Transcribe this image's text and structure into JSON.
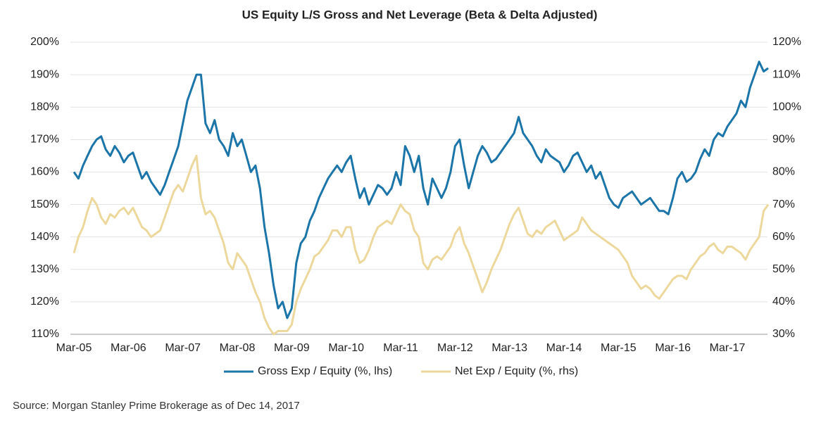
{
  "chart_data": {
    "type": "line",
    "title": "US Equity L/S Gross and Net Leverage (Beta & Delta Adjusted)",
    "source": "Source: Morgan Stanley Prime Brokerage as of Dec 14, 2017",
    "categories": [
      "Mar-05",
      null,
      null,
      null,
      null,
      null,
      null,
      null,
      null,
      null,
      null,
      null,
      "Mar-06",
      null,
      null,
      null,
      null,
      null,
      null,
      null,
      null,
      null,
      null,
      null,
      "Mar-07",
      null,
      null,
      null,
      null,
      null,
      null,
      null,
      null,
      null,
      null,
      null,
      "Mar-08",
      null,
      null,
      null,
      null,
      null,
      null,
      null,
      null,
      null,
      null,
      null,
      "Mar-09",
      null,
      null,
      null,
      null,
      null,
      null,
      null,
      null,
      null,
      null,
      null,
      "Mar-10",
      null,
      null,
      null,
      null,
      null,
      null,
      null,
      null,
      null,
      null,
      null,
      "Mar-11",
      null,
      null,
      null,
      null,
      null,
      null,
      null,
      null,
      null,
      null,
      null,
      "Mar-12",
      null,
      null,
      null,
      null,
      null,
      null,
      null,
      null,
      null,
      null,
      null,
      "Mar-13",
      null,
      null,
      null,
      null,
      null,
      null,
      null,
      null,
      null,
      null,
      null,
      "Mar-14",
      null,
      null,
      null,
      null,
      null,
      null,
      null,
      null,
      null,
      null,
      null,
      "Mar-15",
      null,
      null,
      null,
      null,
      null,
      null,
      null,
      null,
      null,
      null,
      null,
      "Mar-16",
      null,
      null,
      null,
      null,
      null,
      null,
      null,
      null,
      null,
      null,
      null,
      "Mar-17",
      null,
      null,
      null,
      null,
      null,
      null,
      null,
      null,
      null
    ],
    "series": [
      {
        "name": "Gross Exp / Equity (%, lhs)",
        "color": "#1c75a8",
        "axis": "y",
        "values": [
          160,
          158,
          162,
          165,
          168,
          170,
          171,
          167,
          165,
          168,
          166,
          163,
          165,
          166,
          162,
          158,
          160,
          157,
          155,
          153,
          156,
          160,
          164,
          168,
          175,
          182,
          186,
          190,
          190,
          175,
          172,
          176,
          170,
          168,
          165,
          172,
          168,
          170,
          165,
          160,
          162,
          155,
          143,
          135,
          125,
          118,
          120,
          115,
          118,
          132,
          138,
          140,
          145,
          148,
          152,
          155,
          158,
          160,
          162,
          160,
          163,
          165,
          158,
          152,
          155,
          150,
          153,
          156,
          155,
          153,
          155,
          160,
          156,
          168,
          165,
          160,
          165,
          155,
          150,
          158,
          155,
          152,
          155,
          160,
          168,
          170,
          162,
          155,
          160,
          165,
          168,
          166,
          163,
          164,
          166,
          168,
          170,
          172,
          177,
          172,
          170,
          168,
          165,
          163,
          167,
          165,
          164,
          163,
          160,
          162,
          165,
          166,
          163,
          160,
          162,
          158,
          160,
          156,
          152,
          150,
          149,
          152,
          153,
          154,
          152,
          150,
          151,
          152,
          150,
          148,
          148,
          147,
          152,
          158,
          160,
          157,
          158,
          160,
          164,
          167,
          165,
          170,
          172,
          171,
          174,
          176,
          178,
          182,
          180,
          186,
          190,
          194,
          191,
          192
        ]
      },
      {
        "name": "Net Exp / Equity (%, rhs)",
        "color": "#ecd89c",
        "axis": "y2",
        "values": [
          55,
          60,
          63,
          68,
          72,
          70,
          66,
          64,
          67,
          66,
          68,
          69,
          67,
          69,
          66,
          63,
          62,
          60,
          61,
          62,
          66,
          70,
          74,
          76,
          74,
          78,
          82,
          85,
          72,
          67,
          68,
          66,
          62,
          58,
          52,
          50,
          55,
          53,
          51,
          47,
          43,
          40,
          35,
          32,
          30,
          31,
          31,
          31,
          33,
          40,
          44,
          47,
          50,
          54,
          55,
          57,
          59,
          62,
          62,
          60,
          63,
          63,
          56,
          52,
          53,
          56,
          60,
          63,
          64,
          65,
          64,
          67,
          70,
          68,
          67,
          62,
          60,
          52,
          50,
          53,
          54,
          53,
          55,
          57,
          61,
          63,
          58,
          55,
          51,
          47,
          43,
          46,
          50,
          53,
          56,
          60,
          64,
          67,
          69,
          65,
          61,
          60,
          62,
          61,
          63,
          64,
          65,
          62,
          59,
          60,
          61,
          62,
          66,
          64,
          62,
          61,
          60,
          59,
          58,
          57,
          56,
          54,
          52,
          48,
          46,
          44,
          45,
          44,
          42,
          41,
          43,
          45,
          47,
          48,
          48,
          47,
          50,
          52,
          54,
          55,
          57,
          58,
          56,
          55,
          57,
          57,
          56,
          55,
          53,
          56,
          58,
          60,
          68,
          70
        ]
      }
    ],
    "ylim": [
      110,
      200
    ],
    "yticks": [
      {
        "value": 110,
        "label": "110%"
      },
      {
        "value": 120,
        "label": "120%"
      },
      {
        "value": 130,
        "label": "130%"
      },
      {
        "value": 140,
        "label": "140%"
      },
      {
        "value": 150,
        "label": "150%"
      },
      {
        "value": 160,
        "label": "160%"
      },
      {
        "value": 170,
        "label": "170%"
      },
      {
        "value": 180,
        "label": "180%"
      },
      {
        "value": 190,
        "label": "190%"
      },
      {
        "value": 200,
        "label": "200%"
      }
    ],
    "y2lim": [
      30,
      120
    ],
    "y2ticks": [
      {
        "value": 30,
        "label": "30%"
      },
      {
        "value": 40,
        "label": "40%"
      },
      {
        "value": 50,
        "label": "50%"
      },
      {
        "value": 60,
        "label": "60%"
      },
      {
        "value": 70,
        "label": "70%"
      },
      {
        "value": 80,
        "label": "80%"
      },
      {
        "value": 90,
        "label": "90%"
      },
      {
        "value": 100,
        "label": "100%"
      },
      {
        "value": 110,
        "label": "110%"
      },
      {
        "value": 120,
        "label": "120%"
      }
    ],
    "grid": true
  }
}
